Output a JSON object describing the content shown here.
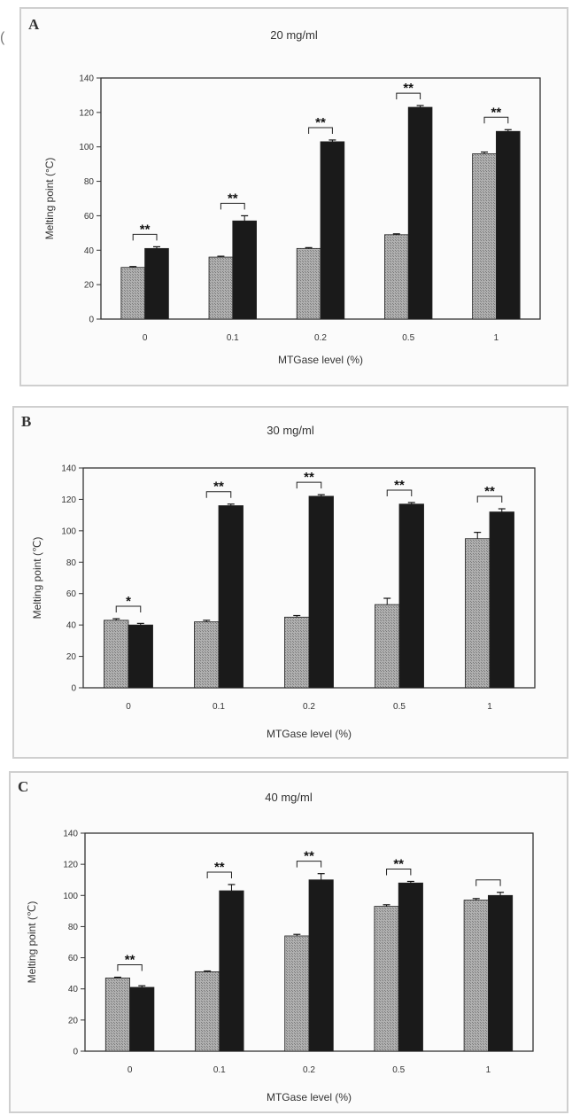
{
  "figure": {
    "stray_mark": "("
  },
  "chart_data": [
    {
      "type": "bar",
      "panel_label": "A",
      "title": "20 mg/ml",
      "xlabel": "MTGase level (%)",
      "ylabel": "Melting point (°C)",
      "ylim": [
        0,
        140
      ],
      "yticks": [
        0,
        20,
        40,
        60,
        80,
        100,
        120,
        140
      ],
      "categories": [
        "0",
        "0.1",
        "0.2",
        "0.5",
        "1"
      ],
      "series": [
        {
          "values": [
            30,
            36,
            41,
            49,
            96
          ],
          "errors": [
            0.5,
            0.5,
            0.5,
            0.5,
            1
          ],
          "color": "#b0b0b0"
        },
        {
          "values": [
            41,
            57,
            103,
            123,
            109
          ],
          "errors": [
            1,
            3,
            1,
            1,
            1
          ],
          "color": "#1a1a1a"
        }
      ],
      "significance": [
        "**",
        "**",
        "**",
        "**",
        "**"
      ]
    },
    {
      "type": "bar",
      "panel_label": "B",
      "title": "30 mg/ml",
      "xlabel": "MTGase level (%)",
      "ylabel": "Melting point (℃)",
      "ylim": [
        0,
        140
      ],
      "yticks": [
        0,
        20,
        40,
        60,
        80,
        100,
        120,
        140
      ],
      "categories": [
        "0",
        "0.1",
        "0.2",
        "0.5",
        "1"
      ],
      "series": [
        {
          "values": [
            43,
            42,
            45,
            53,
            95
          ],
          "errors": [
            1,
            1,
            1,
            4,
            4
          ],
          "color": "#b0b0b0"
        },
        {
          "values": [
            40,
            116,
            122,
            117,
            112
          ],
          "errors": [
            1,
            1,
            1,
            1,
            2
          ],
          "color": "#1a1a1a"
        }
      ],
      "significance": [
        "*",
        "**",
        "**",
        "**",
        "**"
      ]
    },
    {
      "type": "bar",
      "panel_label": "C",
      "title": "40 mg/ml",
      "xlabel": "MTGase level (%)",
      "ylabel": "Melting point (℃)",
      "ylim": [
        0,
        140
      ],
      "yticks": [
        0,
        20,
        40,
        60,
        80,
        100,
        120,
        140
      ],
      "categories": [
        "0",
        "0.1",
        "0.2",
        "0.5",
        "1"
      ],
      "series": [
        {
          "values": [
            47,
            51,
            74,
            93,
            97
          ],
          "errors": [
            0.5,
            0.5,
            1,
            1,
            1
          ],
          "color": "#b0b0b0"
        },
        {
          "values": [
            41,
            103,
            110,
            108,
            100
          ],
          "errors": [
            1,
            4,
            4,
            1,
            2
          ],
          "color": "#1a1a1a"
        }
      ],
      "significance": [
        "**",
        "**",
        "**",
        "**",
        ""
      ]
    }
  ]
}
